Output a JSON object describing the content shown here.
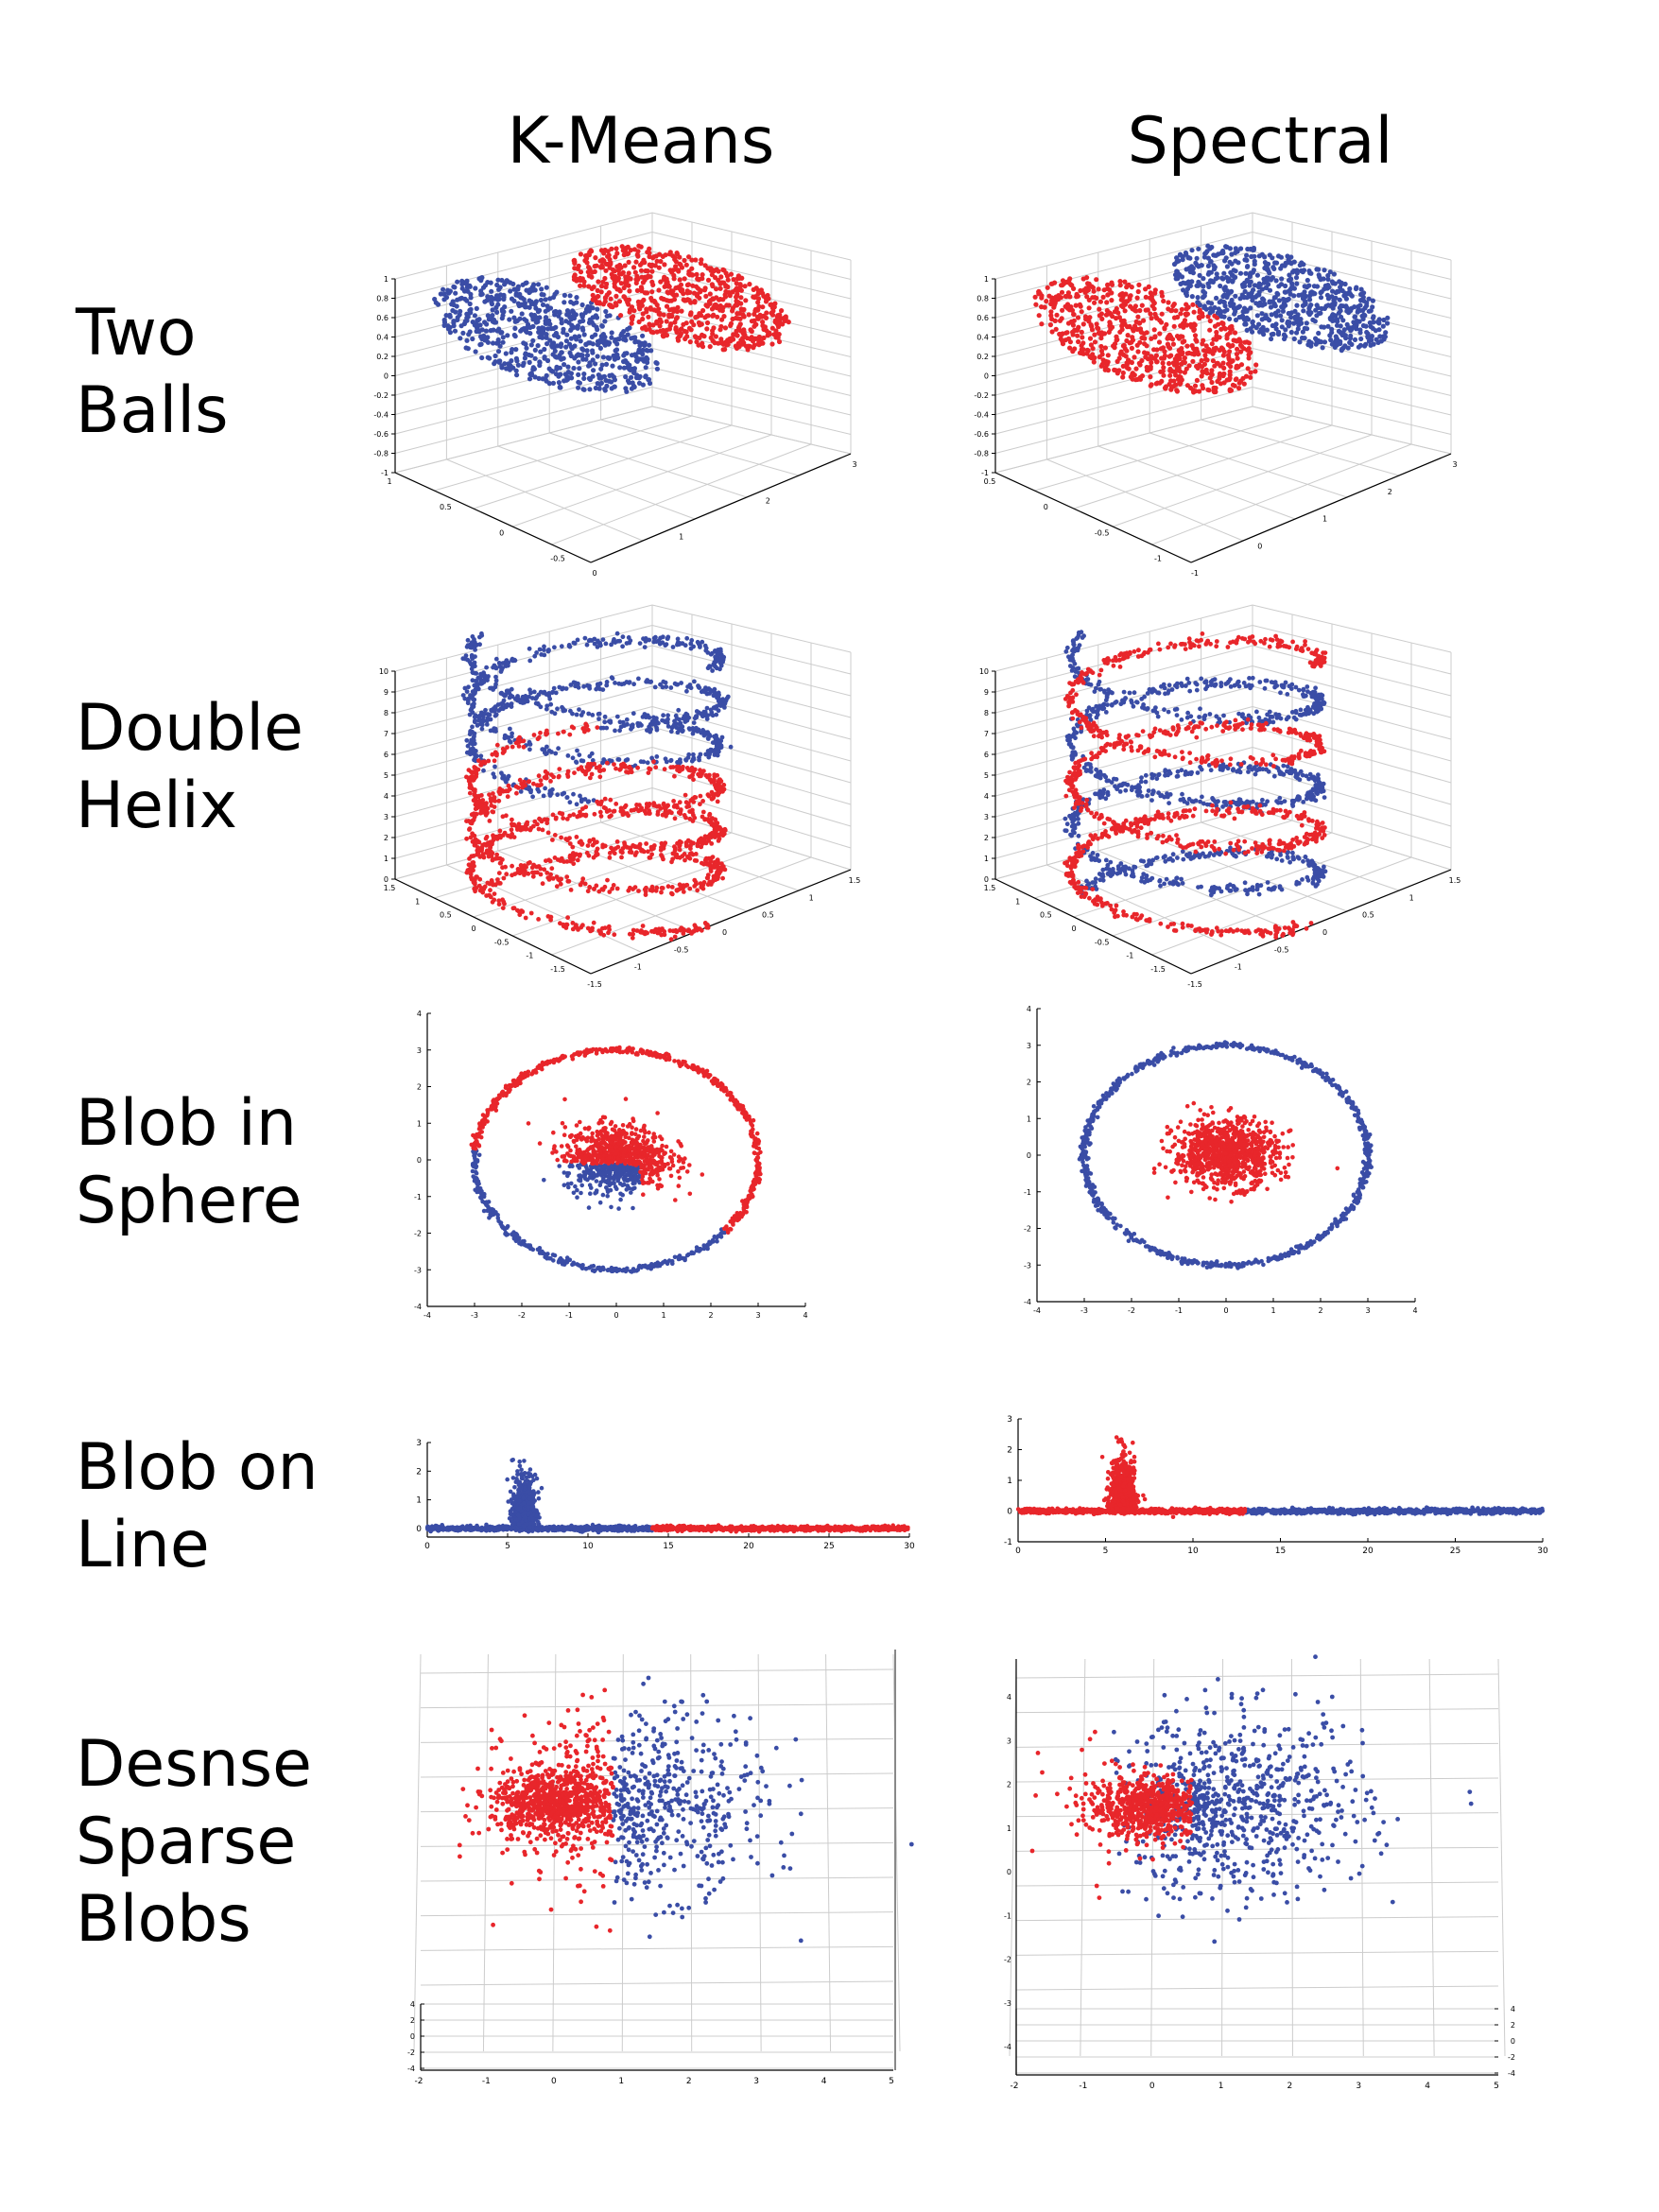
{
  "columns": [
    "K-Means",
    "Spectral"
  ],
  "rows": [
    {
      "label_lines": [
        "Two",
        "Balls"
      ]
    },
    {
      "label_lines": [
        "Double",
        "Helix"
      ]
    },
    {
      "label_lines": [
        "Blob in",
        "Sphere"
      ]
    },
    {
      "label_lines": [
        "Blob on",
        "Line"
      ]
    },
    {
      "label_lines": [
        "Desnse",
        "Sparse",
        "Blobs"
      ]
    }
  ],
  "colors": {
    "cluster_a": "#e8262b",
    "cluster_b": "#3a4da6",
    "grid": "#cccccc",
    "axis": "#000000"
  },
  "chart_data": [
    {
      "type": "scatter",
      "projection": "3d",
      "row": "Two Balls",
      "method": "K-Means",
      "x_ticks": [
        "0",
        "1",
        "2",
        "3"
      ],
      "y_ticks": [
        "1",
        "0.5",
        "0",
        "-0.5"
      ],
      "z_ticks": [
        "1",
        "0.8",
        "0.6",
        "0.4",
        "0.2",
        "0",
        "-0.2",
        "-0.4",
        "-0.6",
        "-0.8",
        "-1"
      ],
      "xlim": [
        -1,
        3
      ],
      "ylim": [
        -1,
        1
      ],
      "zlim": [
        -1,
        1
      ],
      "clusters": [
        {
          "color": "blue",
          "points": "ellipsoid centered x=0, flattened disk"
        },
        {
          "color": "red",
          "points": "ellipsoid centered x=2, flattened disk"
        }
      ]
    }
  ],
  "panels": [
    {
      "id": "two-balls-kmeans",
      "type": "scatter",
      "projection": "3d",
      "x_ticks": [
        "0",
        "1",
        "2",
        "3"
      ],
      "y_ticks": [
        "1",
        "0.5",
        "0",
        "-0.5"
      ],
      "z_ticks": [
        "1",
        "0.8",
        "0.6",
        "0.4",
        "0.2",
        "0",
        "-0.2",
        "-0.4",
        "-0.6",
        "-0.8",
        "-1"
      ]
    },
    {
      "id": "two-balls-spectral",
      "type": "scatter",
      "projection": "3d",
      "x_ticks": [
        "-1",
        "0",
        "1",
        "2",
        "3"
      ],
      "y_ticks": [
        "0.5",
        "0",
        "-0.5",
        "-1"
      ],
      "z_ticks": [
        "1",
        "0.8",
        "0.6",
        "0.4",
        "0.2",
        "0",
        "-0.2",
        "-0.4",
        "-0.6",
        "-0.8",
        "-1"
      ]
    },
    {
      "id": "double-helix-kmeans",
      "type": "scatter",
      "projection": "3d",
      "x_ticks": [
        "-1.5",
        "-1",
        "-0.5",
        "0",
        "0.5",
        "1",
        "1.5"
      ],
      "y_ticks": [
        "1.5",
        "1",
        "0.5",
        "0",
        "-0.5",
        "-1",
        "-1.5"
      ],
      "z_ticks": [
        "10",
        "9",
        "8",
        "7",
        "6",
        "5",
        "4",
        "3",
        "2",
        "1",
        "0"
      ]
    },
    {
      "id": "double-helix-spectral",
      "type": "scatter",
      "projection": "3d",
      "x_ticks": [
        "-1.5",
        "-1",
        "-0.5",
        "0",
        "0.5",
        "1",
        "1.5"
      ],
      "y_ticks": [
        "1.5",
        "1",
        "0.5",
        "0",
        "-0.5",
        "-1",
        "-1.5"
      ],
      "z_ticks": [
        "10",
        "9",
        "8",
        "7",
        "6",
        "5",
        "4",
        "3",
        "2",
        "1",
        "0"
      ]
    },
    {
      "id": "blob-sphere-kmeans",
      "type": "scatter",
      "x_ticks": [
        "-4",
        "-3",
        "-2",
        "-1",
        "0",
        "1",
        "2",
        "3",
        "4"
      ],
      "y_ticks": [
        "4",
        "3",
        "2",
        "1",
        "0",
        "-1",
        "-2",
        "-3",
        "-4"
      ],
      "xlim": [
        -4,
        4
      ],
      "ylim": [
        -4,
        4
      ]
    },
    {
      "id": "blob-sphere-spectral",
      "type": "scatter",
      "x_ticks": [
        "-4",
        "-3",
        "-2",
        "-1",
        "0",
        "1",
        "2",
        "3",
        "4"
      ],
      "y_ticks": [
        "4",
        "3",
        "2",
        "1",
        "0",
        "-1",
        "-2",
        "-3",
        "-4"
      ],
      "xlim": [
        -4,
        4
      ],
      "ylim": [
        -4,
        4
      ]
    },
    {
      "id": "blob-line-kmeans",
      "type": "scatter",
      "x_ticks": [
        "0",
        "5",
        "10",
        "15",
        "20",
        "25",
        "30"
      ],
      "y_ticks": [
        "3",
        "2",
        "1",
        "0"
      ],
      "xlim": [
        0,
        30
      ],
      "ylim": [
        -0.3,
        3
      ]
    },
    {
      "id": "blob-line-spectral",
      "type": "scatter",
      "x_ticks": [
        "0",
        "5",
        "10",
        "15",
        "20",
        "25",
        "30"
      ],
      "y_ticks": [
        "3",
        "2",
        "1",
        "0",
        "-1"
      ],
      "xlim": [
        0,
        30
      ],
      "ylim": [
        -1,
        3
      ]
    },
    {
      "id": "dense-sparse-kmeans",
      "type": "scatter",
      "projection": "3d-top",
      "x_ticks": [
        "-2",
        "-1",
        "0",
        "1",
        "2",
        "3",
        "4",
        "5"
      ],
      "y_ticks": [
        "4",
        "2",
        "0",
        "-2",
        "-4"
      ],
      "xlim": [
        -2,
        5
      ],
      "ylim": [
        -4,
        4
      ]
    },
    {
      "id": "dense-sparse-spectral",
      "type": "scatter",
      "projection": "3d-top",
      "x_ticks": [
        "-2",
        "-1",
        "0",
        "1",
        "2",
        "3",
        "4",
        "5"
      ],
      "y_ticks": [
        "4",
        "3",
        "2",
        "1",
        "0",
        "-1",
        "-2",
        "-3",
        "-4"
      ],
      "xlim": [
        -2,
        5
      ],
      "ylim": [
        -4,
        4
      ]
    }
  ]
}
